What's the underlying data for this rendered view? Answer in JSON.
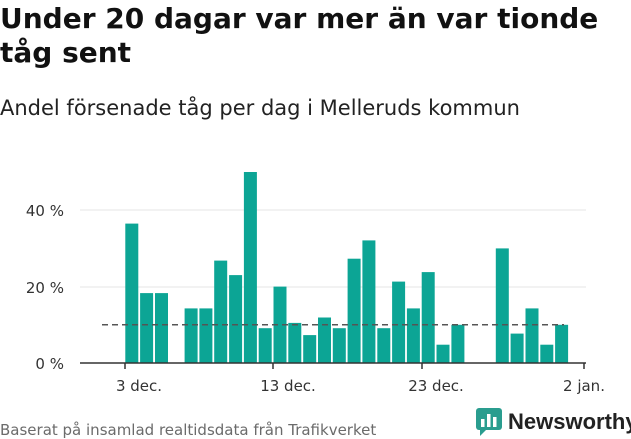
{
  "title": "Under 20 dagar var mer än var tionde tåg sent",
  "subtitle": "Andel försenade tåg per dag i Melleruds kommun",
  "footer": "Baserat på insamlad realtidsdata från Trafikverket",
  "brand": {
    "name": "Newsworthy",
    "icon": "newsworthy-logo-icon",
    "color": "#2a9d8f"
  },
  "colors": {
    "bar": "#0ca595",
    "reference_line": "#555555",
    "axis": "#333333",
    "grid": "#e6e6e6"
  },
  "chart_data": {
    "type": "bar",
    "x": [
      "1 dec.",
      "2 dec.",
      "3 dec.",
      "4 dec.",
      "5 dec.",
      "6 dec.",
      "7 dec.",
      "8 dec.",
      "9 dec.",
      "10 dec.",
      "11 dec.",
      "12 dec.",
      "13 dec.",
      "14 dec.",
      "15 dec.",
      "16 dec.",
      "17 dec.",
      "18 dec.",
      "19 dec.",
      "20 dec.",
      "21 dec.",
      "22 dec.",
      "23 dec.",
      "24 dec.",
      "25 dec.",
      "26 dec.",
      "27 dec.",
      "28 dec.",
      "29 dec.",
      "30 dec.",
      "31 dec."
    ],
    "values": [
      null,
      36.5,
      18.3,
      18.3,
      null,
      14.3,
      14.3,
      26.8,
      23.0,
      50.0,
      9.1,
      20.0,
      10.5,
      7.3,
      11.9,
      9.1,
      27.3,
      32.1,
      9.1,
      21.3,
      14.3,
      23.8,
      4.8,
      10.0,
      null,
      null,
      30.0,
      7.7,
      14.3,
      4.8,
      10.0
    ],
    "reference_line": {
      "value": 10,
      "style": "dashed"
    },
    "xticks": [
      "3 dec.",
      "13 dec.",
      "23 dec.",
      "2 jan."
    ],
    "yticks": [
      "0 %",
      "20 %",
      "40 %"
    ],
    "ylim": [
      0,
      50
    ],
    "grid": "horizontal"
  }
}
